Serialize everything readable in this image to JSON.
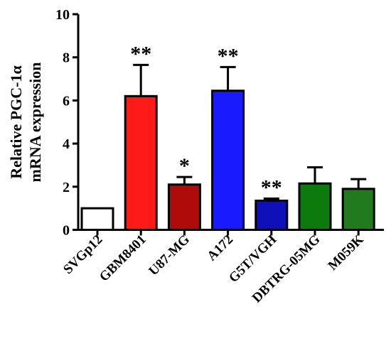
{
  "chart_data": {
    "type": "bar",
    "title": "",
    "xlabel": "",
    "ylabel_lines": [
      "Relative PGC-1α",
      "mRNA expression"
    ],
    "ylim": [
      0,
      10
    ],
    "yticks": [
      0,
      2,
      4,
      6,
      8,
      10
    ],
    "grid": false,
    "categories": [
      "SVGp12",
      "GBM8401",
      "U87-MG",
      "A172",
      "G5T/VGH",
      "DBTRG-05MG",
      "M059K"
    ],
    "values": [
      1.0,
      6.2,
      2.1,
      6.45,
      1.35,
      2.15,
      1.9
    ],
    "errors": [
      0.0,
      1.45,
      0.35,
      1.1,
      0.1,
      0.75,
      0.45
    ],
    "significance": [
      "",
      "**",
      "*",
      "**",
      "**",
      "",
      ""
    ],
    "colors": [
      "#ffffff",
      "#ff1a1a",
      "#b00b0b",
      "#1a1aff",
      "#1010bb",
      "#0d7a0d",
      "#217a1e"
    ]
  }
}
